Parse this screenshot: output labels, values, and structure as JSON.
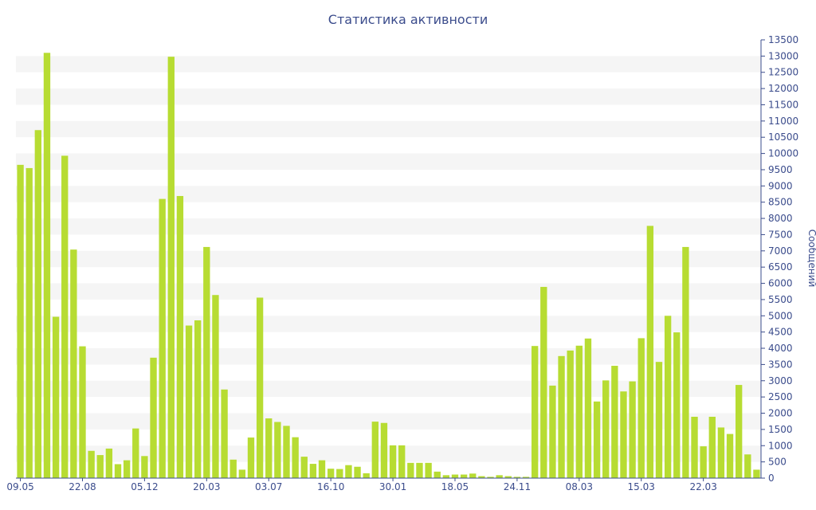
{
  "chart_data": {
    "type": "bar",
    "title": "Статистика активности",
    "ylabel": "Сообщений",
    "ylim": [
      0,
      13500
    ],
    "y_ticks": [
      0,
      500,
      1000,
      1500,
      2000,
      2500,
      3000,
      3500,
      4000,
      4500,
      5000,
      5500,
      6000,
      6500,
      7000,
      7500,
      8000,
      8500,
      9000,
      9500,
      10000,
      10500,
      11000,
      11500,
      12000,
      12500,
      13000,
      13500
    ],
    "x_tick_labels": [
      {
        "label": "09.05",
        "index": 0
      },
      {
        "label": "22.08",
        "index": 7
      },
      {
        "label": "05.12",
        "index": 14
      },
      {
        "label": "20.03",
        "index": 21
      },
      {
        "label": "03.07",
        "index": 28
      },
      {
        "label": "16.10",
        "index": 35
      },
      {
        "label": "30.01",
        "index": 42
      },
      {
        "label": "18.05",
        "index": 49
      },
      {
        "label": "24.11",
        "index": 56
      },
      {
        "label": "08.03",
        "index": 63
      },
      {
        "label": "15.03",
        "index": 70
      },
      {
        "label": "22.03",
        "index": 77
      }
    ],
    "grid": "horizontal alternating bands",
    "bar_color": "#b7dc32",
    "values": [
      9650,
      9550,
      10720,
      13100,
      4970,
      9930,
      7040,
      4060,
      840,
      710,
      910,
      430,
      550,
      1530,
      680,
      3710,
      8600,
      12980,
      8690,
      4700,
      4860,
      7120,
      5640,
      2730,
      570,
      260,
      1250,
      5560,
      1840,
      1730,
      1610,
      1260,
      660,
      440,
      550,
      290,
      280,
      400,
      350,
      150,
      1740,
      1700,
      1010,
      1010,
      470,
      470,
      470,
      200,
      90,
      110,
      110,
      140,
      60,
      40,
      90,
      60,
      40,
      40,
      4070,
      5890,
      2850,
      3760,
      3930,
      4080,
      4300,
      2360,
      3010,
      3460,
      2670,
      2980,
      4310,
      7770,
      3580,
      5000,
      4490,
      7120,
      1890,
      980,
      1890,
      1560,
      1360,
      2870,
      730,
      260
    ]
  }
}
